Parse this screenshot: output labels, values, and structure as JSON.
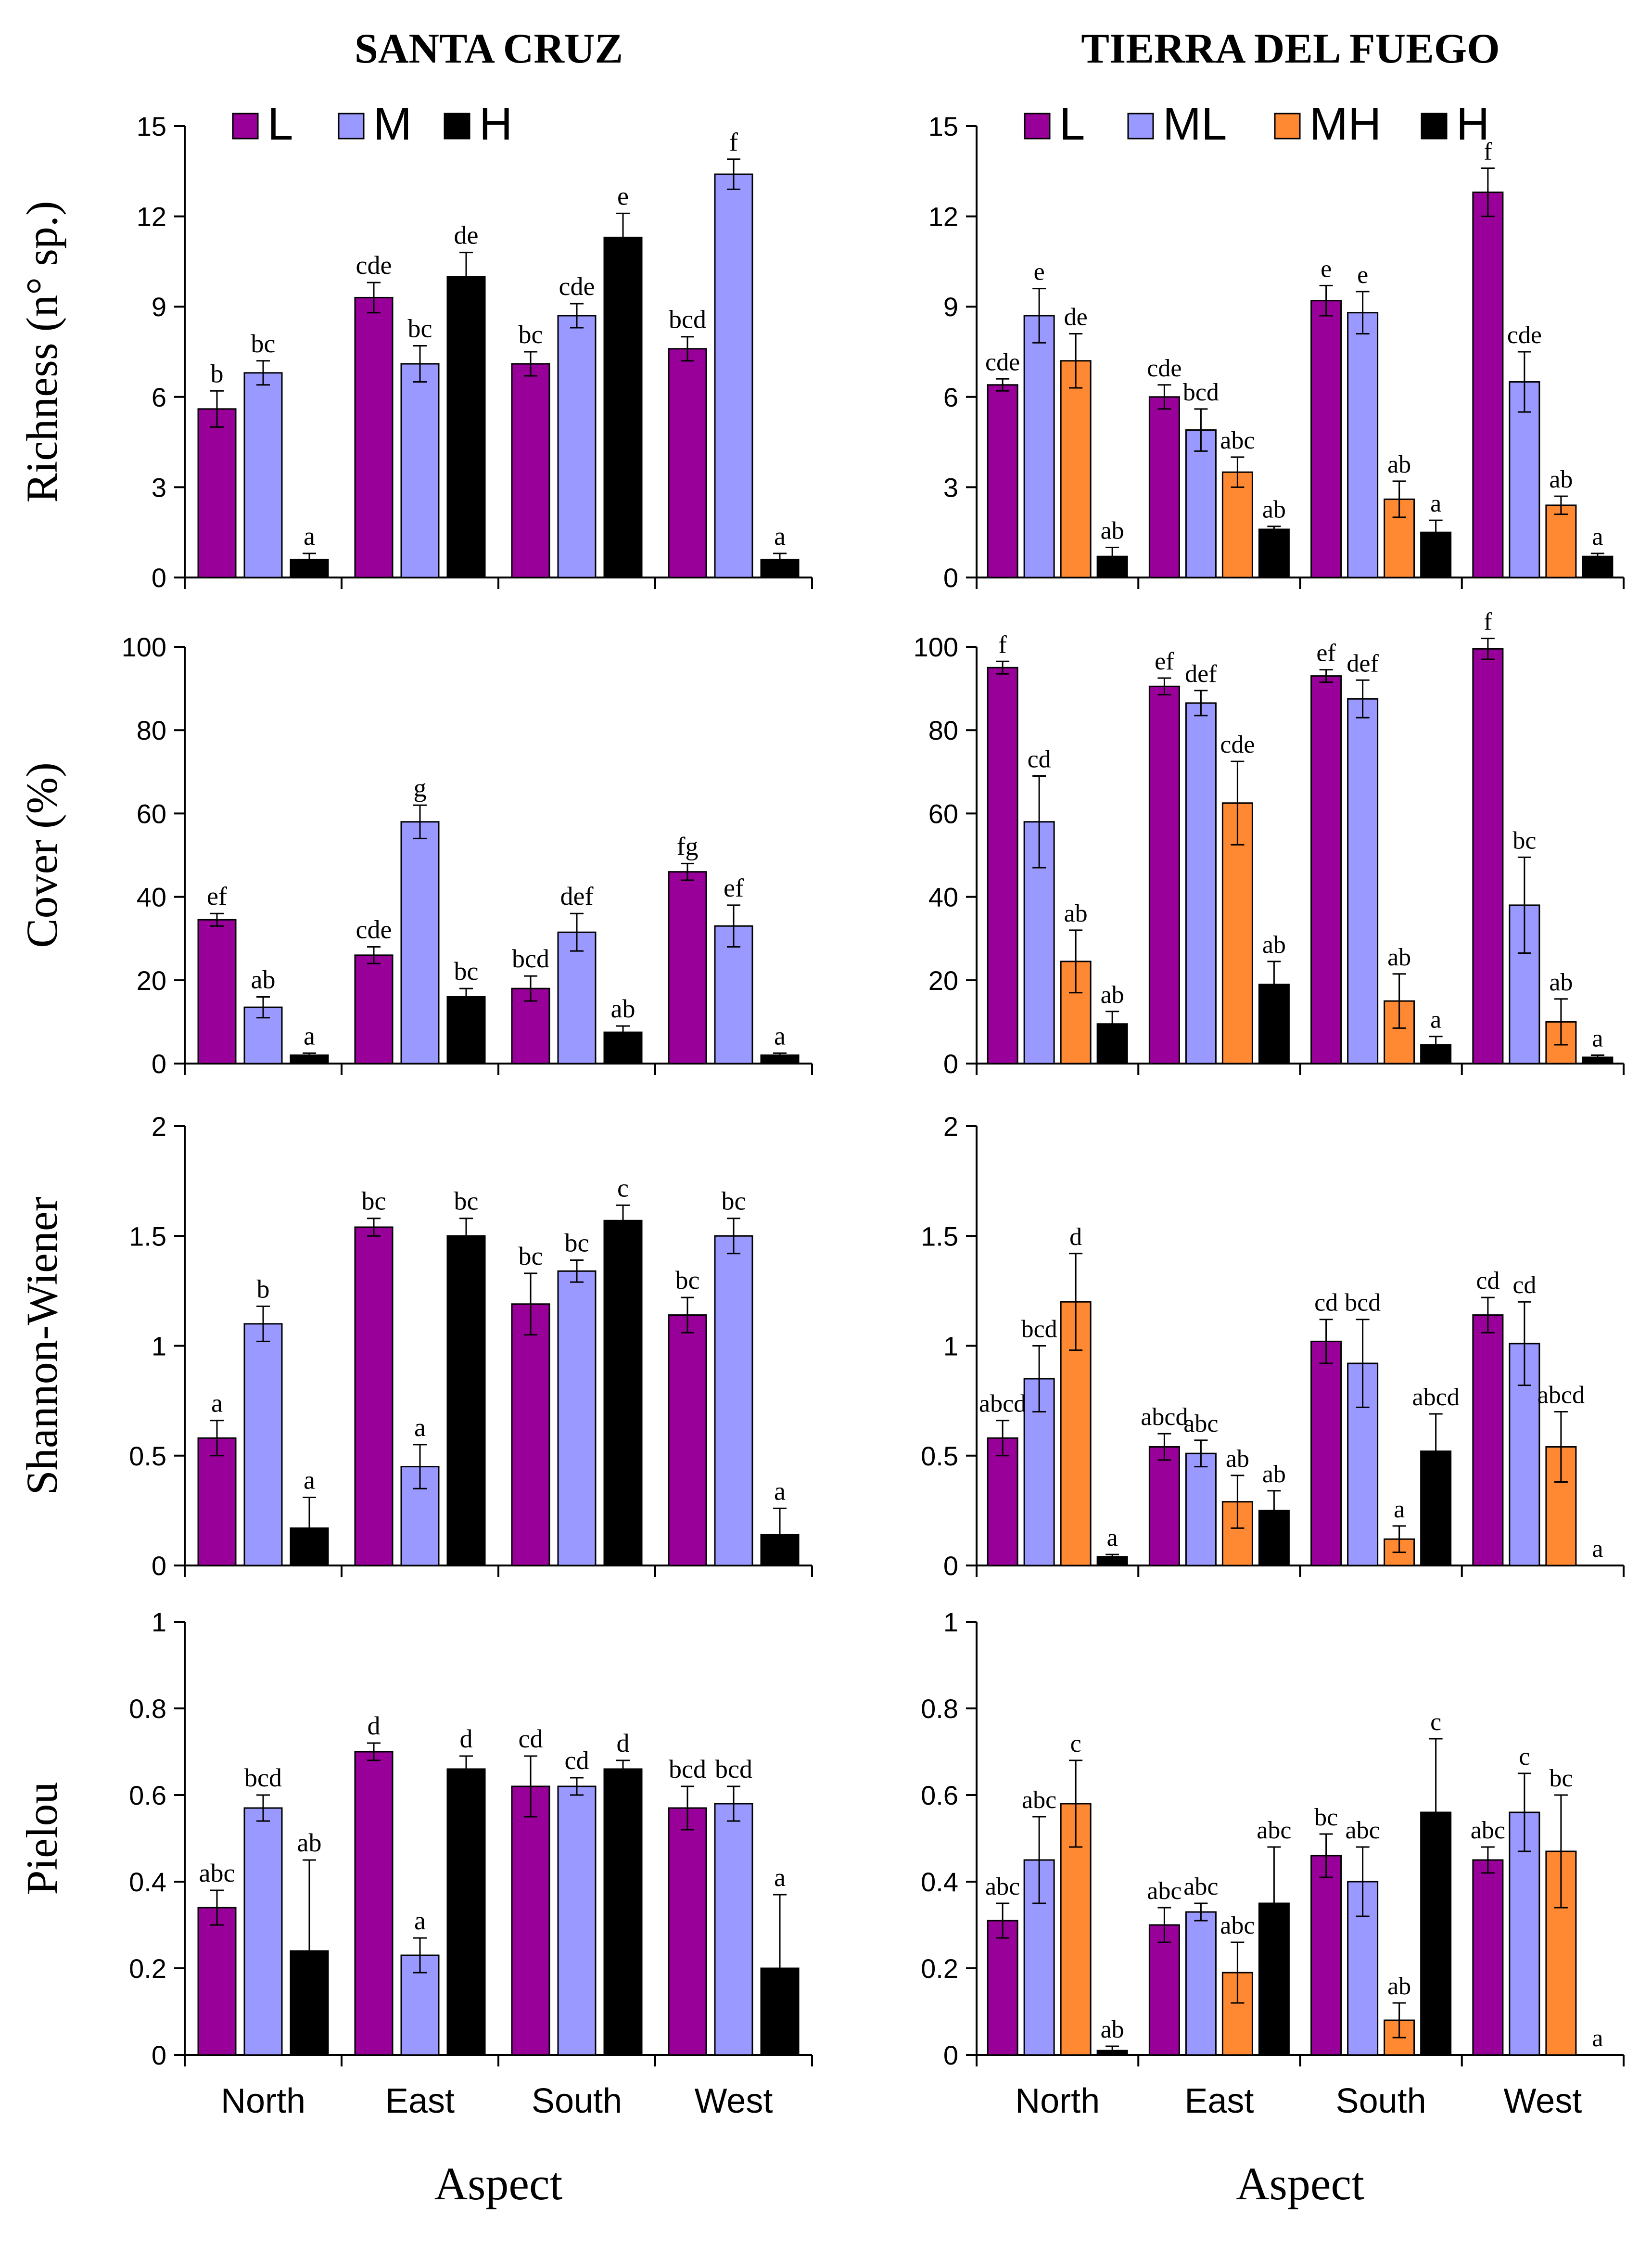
{
  "figure": {
    "xlabel": "Aspect",
    "categories": [
      "North",
      "East",
      "South",
      "West"
    ]
  },
  "chart_data": [
    {
      "type": "bar",
      "region": "Santa Cruz",
      "title": "SANTA CRUZ",
      "ylabel": "Richness (n° sp.)",
      "ylim": [
        0,
        15
      ],
      "yticks": [
        "0",
        "3",
        "6",
        "9",
        "12",
        "15"
      ],
      "categories": [
        "North",
        "East",
        "South",
        "West"
      ],
      "xlabel": "Aspect",
      "series": [
        {
          "name": "L",
          "color": "#990099",
          "values": [
            5.6,
            9.3,
            7.1,
            7.6
          ],
          "errors": [
            0.6,
            0.5,
            0.4,
            0.4
          ],
          "letters": [
            "b",
            "cde",
            "bc",
            "bcd"
          ]
        },
        {
          "name": "M",
          "color": "#9999ff",
          "values": [
            6.8,
            7.1,
            8.7,
            13.4
          ],
          "errors": [
            0.4,
            0.6,
            0.4,
            0.5
          ],
          "letters": [
            "bc",
            "bc",
            "cde",
            "f"
          ]
        },
        {
          "name": "H",
          "color": "#000000",
          "values": [
            0.6,
            10.0,
            11.3,
            0.6
          ],
          "errors": [
            0.2,
            0.8,
            0.8,
            0.2
          ],
          "letters": [
            "a",
            "de",
            "e",
            "a"
          ]
        }
      ]
    },
    {
      "type": "bar",
      "region": "Tierra del Fuego",
      "title": "TIERRA DEL FUEGO",
      "ylabel": "",
      "ylim": [
        0,
        15
      ],
      "yticks": [
        "0",
        "3",
        "6",
        "9",
        "12",
        "15"
      ],
      "categories": [
        "North",
        "East",
        "South",
        "West"
      ],
      "xlabel": "Aspect",
      "series": [
        {
          "name": "L",
          "color": "#990099",
          "values": [
            6.4,
            6.0,
            9.2,
            12.8
          ],
          "errors": [
            0.2,
            0.4,
            0.5,
            0.8
          ],
          "letters": [
            "cde",
            "cde",
            "e",
            "f"
          ]
        },
        {
          "name": "ML",
          "color": "#9999ff",
          "values": [
            8.7,
            4.9,
            8.8,
            6.5
          ],
          "errors": [
            0.9,
            0.7,
            0.7,
            1.0
          ],
          "letters": [
            "e",
            "bcd",
            "e",
            "cde"
          ]
        },
        {
          "name": "MH",
          "color": "#ff8833",
          "values": [
            7.2,
            3.5,
            2.6,
            2.4
          ],
          "errors": [
            0.9,
            0.5,
            0.6,
            0.3
          ],
          "letters": [
            "de",
            "abc",
            "ab",
            "ab"
          ]
        },
        {
          "name": "H",
          "color": "#000000",
          "values": [
            0.7,
            1.6,
            1.5,
            0.7
          ],
          "errors": [
            0.3,
            0.1,
            0.4,
            0.1
          ],
          "letters": [
            "ab",
            "ab",
            "a",
            "a"
          ]
        }
      ]
    },
    {
      "type": "bar",
      "region": "Santa Cruz",
      "title": "",
      "ylabel": "Cover (%)",
      "ylim": [
        0,
        100
      ],
      "yticks": [
        "0",
        "20",
        "40",
        "60",
        "80",
        "100"
      ],
      "categories": [
        "North",
        "East",
        "South",
        "West"
      ],
      "xlabel": "Aspect",
      "series": [
        {
          "name": "L",
          "color": "#990099",
          "values": [
            34.5,
            26,
            18,
            46
          ],
          "errors": [
            1.5,
            2,
            3,
            2
          ],
          "letters": [
            "ef",
            "cde",
            "bcd",
            "fg"
          ]
        },
        {
          "name": "M",
          "color": "#9999ff",
          "values": [
            13.5,
            58,
            31.5,
            33
          ],
          "errors": [
            2.5,
            4,
            4.5,
            5
          ],
          "letters": [
            "ab",
            "g",
            "def",
            "ef"
          ]
        },
        {
          "name": "H",
          "color": "#000000",
          "values": [
            2,
            16,
            7.5,
            2
          ],
          "errors": [
            0.5,
            2,
            1.5,
            0.5
          ],
          "letters": [
            "a",
            "bc",
            "ab",
            "a"
          ]
        }
      ]
    },
    {
      "type": "bar",
      "region": "Tierra del Fuego",
      "title": "",
      "ylabel": "",
      "ylim": [
        0,
        100
      ],
      "yticks": [
        "0",
        "20",
        "40",
        "60",
        "80",
        "100"
      ],
      "categories": [
        "North",
        "East",
        "South",
        "West"
      ],
      "xlabel": "Aspect",
      "series": [
        {
          "name": "L",
          "color": "#990099",
          "values": [
            95,
            90.5,
            93,
            99.5
          ],
          "errors": [
            1.5,
            2,
            1.5,
            2.5
          ],
          "letters": [
            "f",
            "ef",
            "ef",
            "f"
          ]
        },
        {
          "name": "ML",
          "color": "#9999ff",
          "values": [
            58,
            86.5,
            87.5,
            38
          ],
          "errors": [
            11,
            3,
            4.5,
            11.5
          ],
          "letters": [
            "cd",
            "def",
            "def",
            "bc"
          ]
        },
        {
          "name": "MH",
          "color": "#ff8833",
          "values": [
            24.5,
            62.5,
            15,
            10
          ],
          "errors": [
            7.5,
            10,
            6.5,
            5.5
          ],
          "letters": [
            "ab",
            "cde",
            "ab",
            "ab"
          ]
        },
        {
          "name": "H",
          "color": "#000000",
          "values": [
            9.5,
            19,
            4.5,
            1.5
          ],
          "errors": [
            3,
            5.5,
            2,
            0.5
          ],
          "letters": [
            "ab",
            "ab",
            "a",
            "a"
          ]
        }
      ]
    },
    {
      "type": "bar",
      "region": "Santa Cruz",
      "title": "",
      "ylabel": "Shannon-Wiener",
      "ylim": [
        0,
        2
      ],
      "yticks": [
        "0",
        "0.5",
        "1",
        "1.5",
        "2"
      ],
      "categories": [
        "North",
        "East",
        "South",
        "West"
      ],
      "xlabel": "Aspect",
      "series": [
        {
          "name": "L",
          "color": "#990099",
          "values": [
            0.58,
            1.54,
            1.19,
            1.14
          ],
          "errors": [
            0.08,
            0.04,
            0.14,
            0.08
          ],
          "letters": [
            "a",
            "bc",
            "bc",
            "bc"
          ]
        },
        {
          "name": "M",
          "color": "#9999ff",
          "values": [
            1.1,
            0.45,
            1.34,
            1.5
          ],
          "errors": [
            0.08,
            0.1,
            0.05,
            0.08
          ],
          "letters": [
            "b",
            "a",
            "bc",
            "bc"
          ]
        },
        {
          "name": "H",
          "color": "#000000",
          "values": [
            0.17,
            1.5,
            1.57,
            0.14
          ],
          "errors": [
            0.14,
            0.08,
            0.07,
            0.12
          ],
          "letters": [
            "a",
            "bc",
            "c",
            "a"
          ]
        }
      ]
    },
    {
      "type": "bar",
      "region": "Tierra del Fuego",
      "title": "",
      "ylabel": "",
      "ylim": [
        0,
        2
      ],
      "yticks": [
        "0",
        "0.5",
        "1",
        "1.5",
        "2"
      ],
      "categories": [
        "North",
        "East",
        "South",
        "West"
      ],
      "xlabel": "Aspect",
      "series": [
        {
          "name": "L",
          "color": "#990099",
          "values": [
            0.58,
            0.54,
            1.02,
            1.14
          ],
          "errors": [
            0.08,
            0.06,
            0.1,
            0.08
          ],
          "letters": [
            "abcd",
            "abcd",
            "cd",
            "cd"
          ]
        },
        {
          "name": "ML",
          "color": "#9999ff",
          "values": [
            0.85,
            0.51,
            0.92,
            1.01
          ],
          "errors": [
            0.15,
            0.06,
            0.2,
            0.19
          ],
          "letters": [
            "bcd",
            "abc",
            "bcd",
            "cd"
          ]
        },
        {
          "name": "MH",
          "color": "#ff8833",
          "values": [
            1.2,
            0.29,
            0.12,
            0.54
          ],
          "errors": [
            0.22,
            0.12,
            0.06,
            0.16
          ],
          "letters": [
            "d",
            "ab",
            "a",
            "abcd"
          ]
        },
        {
          "name": "H",
          "color": "#000000",
          "values": [
            0.04,
            0.25,
            0.52,
            0.0
          ],
          "errors": [
            0.01,
            0.09,
            0.17,
            0.0
          ],
          "letters": [
            "a",
            "ab",
            "abcd",
            "a"
          ]
        }
      ]
    },
    {
      "type": "bar",
      "region": "Santa Cruz",
      "title": "",
      "ylabel": "Pielou",
      "ylim": [
        0,
        1
      ],
      "yticks": [
        "0",
        "0.2",
        "0.4",
        "0.6",
        "0.8",
        "1"
      ],
      "categories": [
        "North",
        "East",
        "South",
        "West"
      ],
      "xlabel": "Aspect",
      "series": [
        {
          "name": "L",
          "color": "#990099",
          "values": [
            0.34,
            0.7,
            0.62,
            0.57
          ],
          "errors": [
            0.04,
            0.02,
            0.07,
            0.05
          ],
          "letters": [
            "abc",
            "d",
            "cd",
            "bcd"
          ]
        },
        {
          "name": "M",
          "color": "#9999ff",
          "values": [
            0.57,
            0.23,
            0.62,
            0.58
          ],
          "errors": [
            0.03,
            0.04,
            0.02,
            0.04
          ],
          "letters": [
            "bcd",
            "a",
            "cd",
            "bcd"
          ]
        },
        {
          "name": "H",
          "color": "#000000",
          "values": [
            0.24,
            0.66,
            0.66,
            0.2
          ],
          "errors": [
            0.21,
            0.03,
            0.02,
            0.17
          ],
          "letters": [
            "ab",
            "d",
            "d",
            "a"
          ]
        }
      ]
    },
    {
      "type": "bar",
      "region": "Tierra del Fuego",
      "title": "",
      "ylabel": "",
      "ylim": [
        0,
        1
      ],
      "yticks": [
        "0",
        "0.2",
        "0.4",
        "0.6",
        "0.8",
        "1"
      ],
      "categories": [
        "North",
        "East",
        "South",
        "West"
      ],
      "xlabel": "Aspect",
      "series": [
        {
          "name": "L",
          "color": "#990099",
          "values": [
            0.31,
            0.3,
            0.46,
            0.45
          ],
          "errors": [
            0.04,
            0.04,
            0.05,
            0.03
          ],
          "letters": [
            "abc",
            "abc",
            "bc",
            "abc"
          ]
        },
        {
          "name": "ML",
          "color": "#9999ff",
          "values": [
            0.45,
            0.33,
            0.4,
            0.56
          ],
          "errors": [
            0.1,
            0.02,
            0.08,
            0.09
          ],
          "letters": [
            "abc",
            "abc",
            "abc",
            "c"
          ]
        },
        {
          "name": "MH",
          "color": "#ff8833",
          "values": [
            0.58,
            0.19,
            0.08,
            0.47
          ],
          "errors": [
            0.1,
            0.07,
            0.04,
            0.13
          ],
          "letters": [
            "c",
            "abc",
            "ab",
            "bc"
          ]
        },
        {
          "name": "H",
          "color": "#000000",
          "values": [
            0.01,
            0.35,
            0.56,
            0.0
          ],
          "errors": [
            0.01,
            0.13,
            0.17,
            0.0
          ],
          "letters": [
            "ab",
            "abc",
            "c",
            "a"
          ]
        }
      ]
    }
  ]
}
